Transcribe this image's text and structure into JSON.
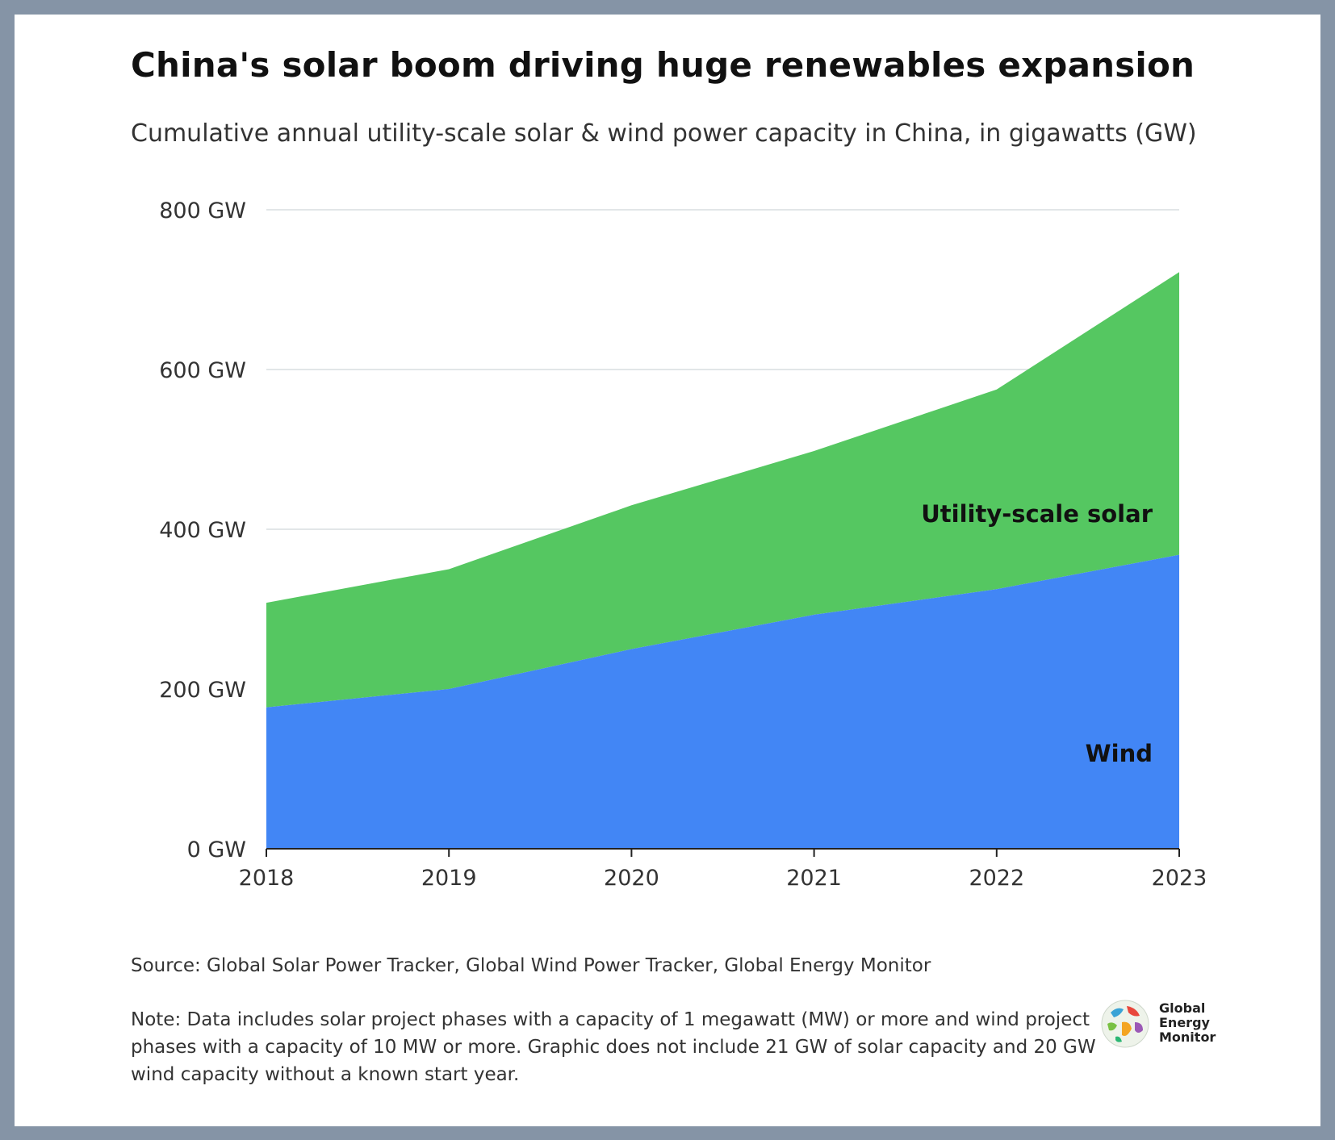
{
  "title": "China's solar boom driving huge renewables expansion",
  "subtitle": "Cumulative annual utility-scale solar & wind power capacity in China, in gigawatts (GW)",
  "source": "Source: Global Solar Power Tracker, Global Wind Power Tracker, Global Energy Monitor",
  "note": "Note: Data includes solar project phases with a capacity of 1 megawatt (MW) or more and wind project phases with a capacity of 10 MW or more. Graphic does not include 21 GW of solar capacity and 20 GW wind capacity without a known start year.",
  "logo": {
    "line1": "Global",
    "line2": "Energy",
    "line3": "Monitor",
    "icon": "globe-icon"
  },
  "colors": {
    "wind": "#4286f5",
    "solar": "#55c761",
    "grid": "#d9dde1",
    "frame": "#8594a6"
  },
  "chart_data": {
    "type": "area",
    "stacked": true,
    "x": [
      "2018",
      "2019",
      "2020",
      "2021",
      "2022",
      "2023"
    ],
    "series": [
      {
        "name": "Wind",
        "values": [
          177,
          200,
          250,
          293,
          325,
          368
        ]
      },
      {
        "name": "Utility-scale solar",
        "values": [
          131,
          150,
          180,
          205,
          250,
          354
        ]
      }
    ],
    "y_ticks": [
      "0 GW",
      "200 GW",
      "400 GW",
      "600 GW",
      "800 GW"
    ],
    "y_tick_values": [
      0,
      200,
      400,
      600,
      800
    ],
    "ylim": [
      0,
      800
    ],
    "grid": true,
    "legend": "inline labels on areas"
  }
}
